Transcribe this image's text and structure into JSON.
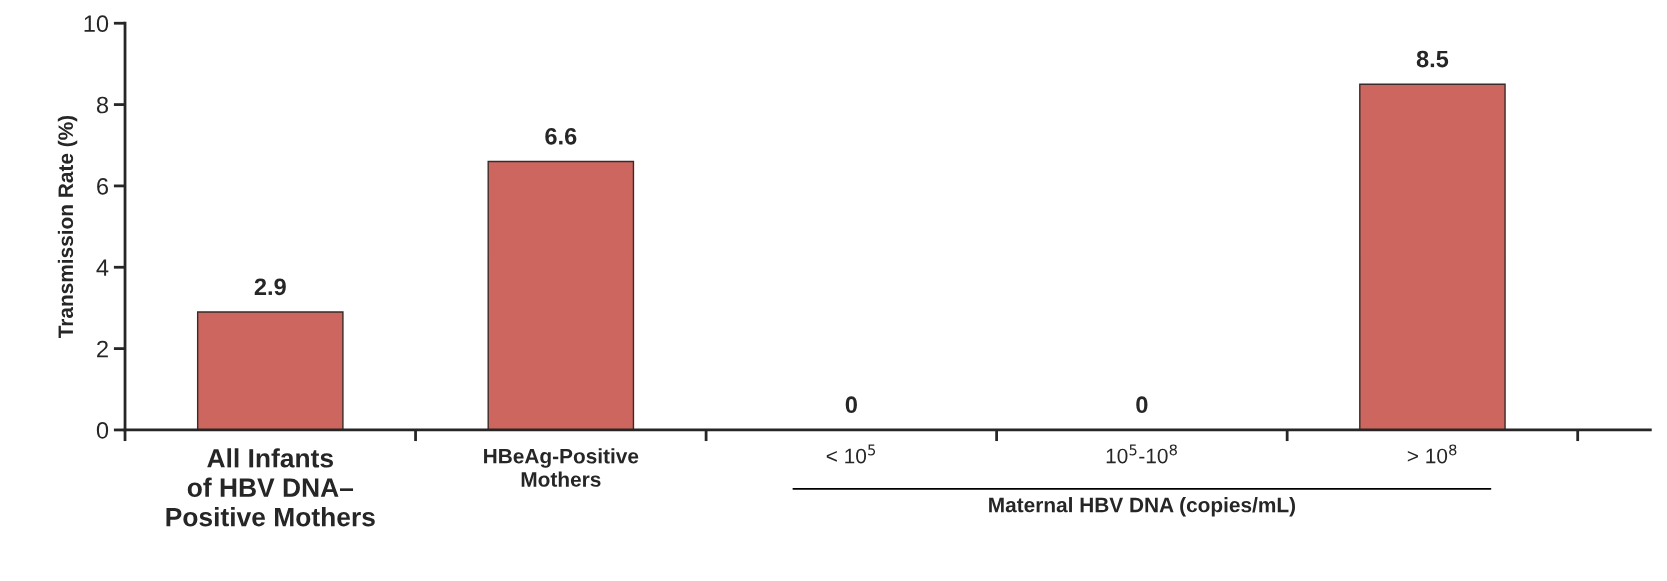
{
  "chart_data": {
    "type": "bar",
    "ylabel": "Transmission Rate (%)",
    "categories": [
      "All Infants\nof HBV DNA–\nPositive Mothers",
      "HBeAg-Positive\nMothers",
      "< 10$^{5}$",
      "10$^{5}$-10$^{8}$",
      "> 10$^{8}$"
    ],
    "values": [
      2.9,
      6.6,
      0,
      0,
      8.5
    ],
    "color": "#cd665f",
    "data_labels": true,
    "ylim": [
      0,
      10
    ],
    "yticks": [
      0,
      2,
      4,
      6,
      8,
      10
    ],
    "grid": false,
    "legend": false,
    "annotations": [
      "Maternal HBV DNA (copies/mL)"
    ]
  }
}
